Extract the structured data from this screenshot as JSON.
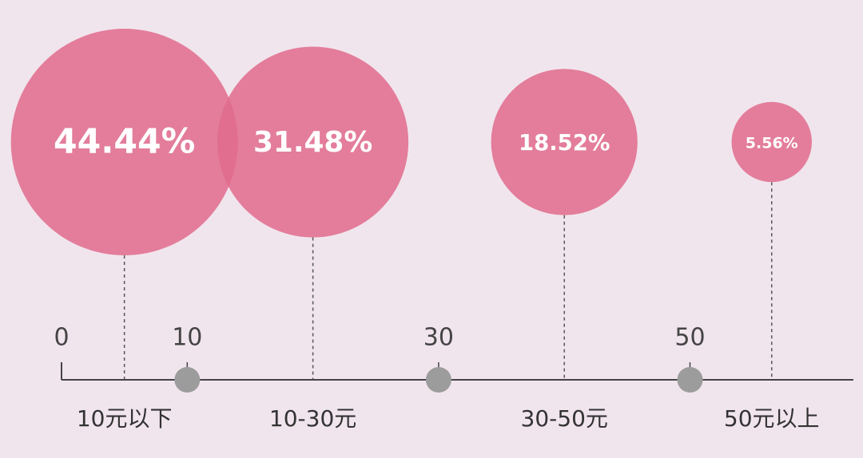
{
  "chart_data": {
    "type": "bubble",
    "categories": [
      "10元以下",
      "10-30元",
      "30-50元",
      "50元以上"
    ],
    "values": [
      44.44,
      31.48,
      18.52,
      5.56
    ],
    "value_labels": [
      "44.44%",
      "31.48%",
      "18.52%",
      "5.56%"
    ],
    "color": "#e06b8c",
    "xlim": [
      0,
      63
    ],
    "xticks": [
      0,
      10,
      30,
      50
    ]
  }
}
